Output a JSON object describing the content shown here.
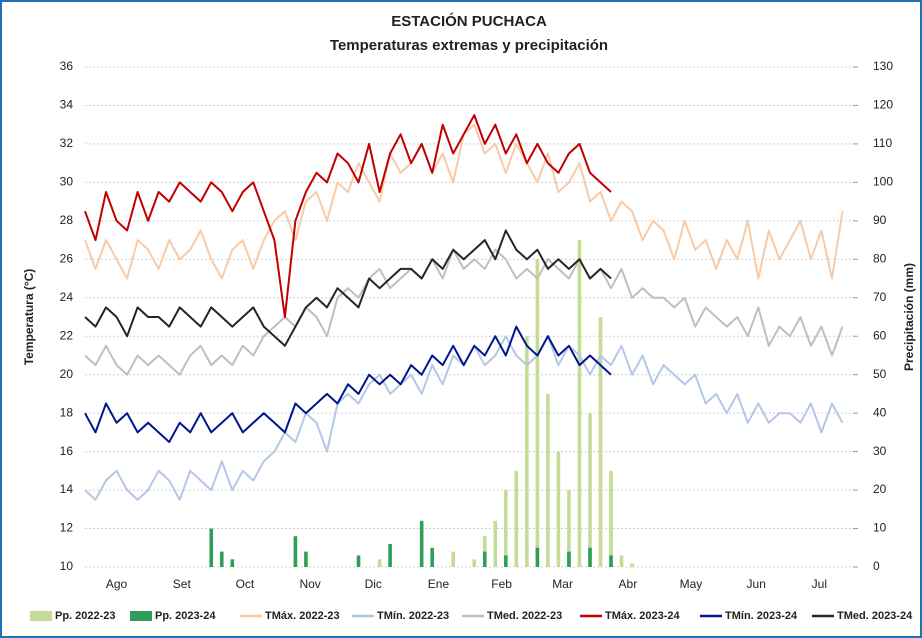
{
  "chart_data": {
    "type": "combo",
    "title": "ESTACIÓN PUCHACA",
    "subtitle": "Temperaturas extremas y precipitación",
    "y_label": "Temperatura (°C)",
    "y2_label": "Precipitación (mm)",
    "x": [
      0,
      5,
      10,
      15,
      20,
      25,
      30,
      35,
      40,
      45,
      50,
      55,
      60,
      65,
      70,
      75,
      80,
      85,
      90,
      95,
      100,
      105,
      110,
      115,
      120,
      125,
      130,
      135,
      140,
      145,
      150,
      155,
      160,
      165,
      170,
      175,
      180,
      185,
      190,
      195,
      200,
      205,
      210,
      215,
      220,
      225,
      230,
      235,
      240,
      245,
      250,
      255,
      260,
      265,
      270,
      275,
      280,
      285,
      290,
      295,
      300,
      305,
      310,
      315,
      320,
      325,
      330,
      335,
      340,
      345,
      350,
      355,
      360
    ],
    "xlim": [
      0,
      365
    ],
    "xticks": [
      {
        "value": 15,
        "label": "Ago"
      },
      {
        "value": 46,
        "label": "Set"
      },
      {
        "value": 76,
        "label": "Oct"
      },
      {
        "value": 107,
        "label": "Nov"
      },
      {
        "value": 137,
        "label": "Dic"
      },
      {
        "value": 168,
        "label": "Ene"
      },
      {
        "value": 198,
        "label": "Feb"
      },
      {
        "value": 227,
        "label": "Mar"
      },
      {
        "value": 258,
        "label": "Abr"
      },
      {
        "value": 288,
        "label": "May"
      },
      {
        "value": 319,
        "label": "Jun"
      },
      {
        "value": 349,
        "label": "Jul"
      }
    ],
    "ylim": [
      10,
      36
    ],
    "yticks": [
      10,
      12,
      14,
      16,
      18,
      20,
      22,
      24,
      26,
      28,
      30,
      32,
      34,
      36
    ],
    "y2lim": [
      0,
      130
    ],
    "y2ticks": [
      0,
      10,
      20,
      30,
      40,
      50,
      60,
      70,
      80,
      90,
      100,
      110,
      120,
      130
    ],
    "grid": true,
    "legend": "bottom",
    "series": [
      {
        "name": "Pp. 2022-23",
        "type": "bar",
        "axis": "y2",
        "color": "#c5dc97",
        "values": [
          0,
          0,
          0,
          0,
          0,
          0,
          0,
          0,
          0,
          0,
          0,
          0,
          0,
          0,
          0,
          0,
          0,
          0,
          0,
          0,
          1,
          0,
          0,
          0,
          0,
          0,
          0,
          0,
          2,
          0,
          0,
          0,
          3,
          0,
          0,
          4,
          0,
          2,
          8,
          12,
          20,
          25,
          60,
          80,
          45,
          30,
          20,
          85,
          40,
          65,
          25,
          3,
          1,
          0,
          0,
          0,
          0,
          0,
          0,
          0,
          0,
          0,
          0,
          0,
          0,
          0,
          0,
          0,
          0,
          0,
          0,
          0,
          0
        ]
      },
      {
        "name": "Pp. 2023-24",
        "type": "bar",
        "axis": "y2",
        "color": "#2e9e5a",
        "values": [
          0,
          0,
          0,
          0,
          0,
          0,
          0,
          0,
          0,
          0,
          0,
          0,
          10,
          4,
          2,
          0,
          0,
          0,
          0,
          0,
          8,
          4,
          0,
          0,
          0,
          0,
          3,
          0,
          0,
          6,
          0,
          0,
          12,
          5,
          0,
          0,
          0,
          0,
          4,
          0,
          3,
          0,
          0,
          5,
          0,
          0,
          4,
          0,
          5,
          0,
          3,
          null,
          null,
          null,
          null,
          null,
          null,
          null,
          null,
          null,
          null,
          null,
          null,
          null,
          null,
          null,
          null,
          null,
          null,
          null,
          null,
          null,
          null
        ]
      },
      {
        "name": "TMáx. 2022-23",
        "type": "line",
        "color": "#f8cba6",
        "values": [
          27,
          25.5,
          27,
          26,
          25,
          27,
          26.5,
          25.5,
          27,
          26,
          26.5,
          27.5,
          26,
          25,
          26.5,
          27,
          25.5,
          27,
          28,
          28.5,
          27,
          29,
          29.5,
          28,
          30,
          29.5,
          31,
          30,
          29,
          31.5,
          30.5,
          31,
          32,
          30.5,
          31.5,
          30,
          32.5,
          33,
          31.5,
          32,
          30.5,
          32,
          31,
          30,
          31.5,
          29.5,
          30,
          31,
          29,
          29.5,
          28,
          29,
          28.5,
          27,
          28,
          27.5,
          26,
          28,
          26.5,
          27,
          25.5,
          27,
          26,
          28,
          25,
          27.5,
          26,
          27,
          28,
          26,
          27.5,
          25,
          28.5
        ]
      },
      {
        "name": "TMín. 2022-23",
        "type": "line",
        "color": "#b4c7e7",
        "values": [
          14,
          13.5,
          14.5,
          15,
          14,
          13.5,
          14,
          15,
          14.5,
          13.5,
          15,
          14.5,
          14,
          15.5,
          14,
          15,
          14.5,
          15.5,
          16,
          17,
          16.5,
          18,
          17.5,
          16,
          18.5,
          19,
          18.5,
          19.5,
          20,
          19,
          19.5,
          20,
          19,
          20.5,
          19.5,
          21,
          20.5,
          21.5,
          20.5,
          21,
          22,
          21,
          20.5,
          21,
          22,
          20.5,
          21.5,
          21,
          20,
          21,
          20.5,
          21.5,
          20,
          21,
          19.5,
          20.5,
          20,
          19.5,
          20,
          18.5,
          19,
          18,
          19,
          17.5,
          18.5,
          17.5,
          18,
          18,
          17.5,
          18.5,
          17,
          18.5,
          17.5
        ]
      },
      {
        "name": "TMed. 2022-23",
        "type": "line",
        "color": "#bfbfbf",
        "values": [
          21,
          20.5,
          21.5,
          20.5,
          20,
          21,
          20.5,
          21,
          20.5,
          20,
          21,
          21.5,
          20.5,
          21,
          20.5,
          21.5,
          21,
          22,
          22.5,
          23,
          22.5,
          23.5,
          23,
          22,
          24,
          24.5,
          24,
          25,
          25.5,
          24.5,
          25,
          25.5,
          25,
          26,
          25,
          26.5,
          25.5,
          26,
          25.5,
          26.5,
          26,
          25,
          25.5,
          25,
          26,
          25.5,
          25,
          26,
          25,
          25.5,
          24.5,
          25.5,
          24,
          24.5,
          24,
          24,
          23.5,
          24,
          22.5,
          23.5,
          23,
          22.5,
          23,
          22,
          23.5,
          21.5,
          22.5,
          22,
          23,
          21.5,
          22.5,
          21,
          22.5
        ]
      },
      {
        "name": "TMáx. 2023-24",
        "type": "line",
        "color": "#c00000",
        "values": [
          28.5,
          27,
          29.5,
          28,
          27.5,
          29.5,
          28,
          29.5,
          29,
          30,
          29.5,
          29,
          30,
          29.5,
          28.5,
          29.5,
          30,
          28.5,
          27,
          23,
          28,
          29.5,
          30.5,
          30,
          31.5,
          31,
          30,
          32,
          29.5,
          31.5,
          32.5,
          31,
          32,
          30.5,
          33,
          31.5,
          32.5,
          33.5,
          32,
          33,
          31.5,
          32.5,
          31,
          32,
          31,
          30.5,
          31.5,
          32,
          30.5,
          30,
          29.5,
          null,
          null,
          null,
          null,
          null,
          null,
          null,
          null,
          null,
          null,
          null,
          null,
          null,
          null,
          null,
          null,
          null,
          null,
          null,
          null,
          null,
          null
        ]
      },
      {
        "name": "TMín. 2023-24",
        "type": "line",
        "color": "#00168f",
        "values": [
          18,
          17,
          18.5,
          17.5,
          18,
          17,
          17.5,
          17,
          16.5,
          17.5,
          17,
          18,
          17,
          17.5,
          18,
          17,
          17.5,
          18,
          17.5,
          17,
          18.5,
          18,
          18.5,
          19,
          18.5,
          19.5,
          19,
          20,
          19.5,
          20,
          19.5,
          20.5,
          20,
          21,
          20.5,
          21.5,
          20.5,
          21.5,
          21,
          22,
          21,
          22.5,
          21.5,
          21,
          22,
          21,
          21.5,
          20.5,
          21,
          20.5,
          20,
          null,
          null,
          null,
          null,
          null,
          null,
          null,
          null,
          null,
          null,
          null,
          null,
          null,
          null,
          null,
          null,
          null,
          null,
          null,
          null,
          null,
          null
        ]
      },
      {
        "name": "TMed. 2023-24",
        "type": "line",
        "color": "#262626",
        "values": [
          23,
          22.5,
          23.5,
          23,
          22,
          23.5,
          23,
          23,
          22.5,
          23.5,
          23,
          22.5,
          23.5,
          23,
          22.5,
          23,
          23.5,
          22.5,
          22,
          21.5,
          22.5,
          23.5,
          24,
          23.5,
          24.5,
          24,
          23.5,
          25,
          24.5,
          25,
          25.5,
          25.5,
          25,
          26,
          25.5,
          26.5,
          26,
          26.5,
          27,
          26,
          27.5,
          26.5,
          26,
          26.5,
          25.5,
          26,
          25.5,
          26,
          25,
          25.5,
          25,
          null,
          null,
          null,
          null,
          null,
          null,
          null,
          null,
          null,
          null,
          null,
          null,
          null,
          null,
          null,
          null,
          null,
          null,
          null,
          null,
          null,
          null
        ]
      }
    ]
  }
}
